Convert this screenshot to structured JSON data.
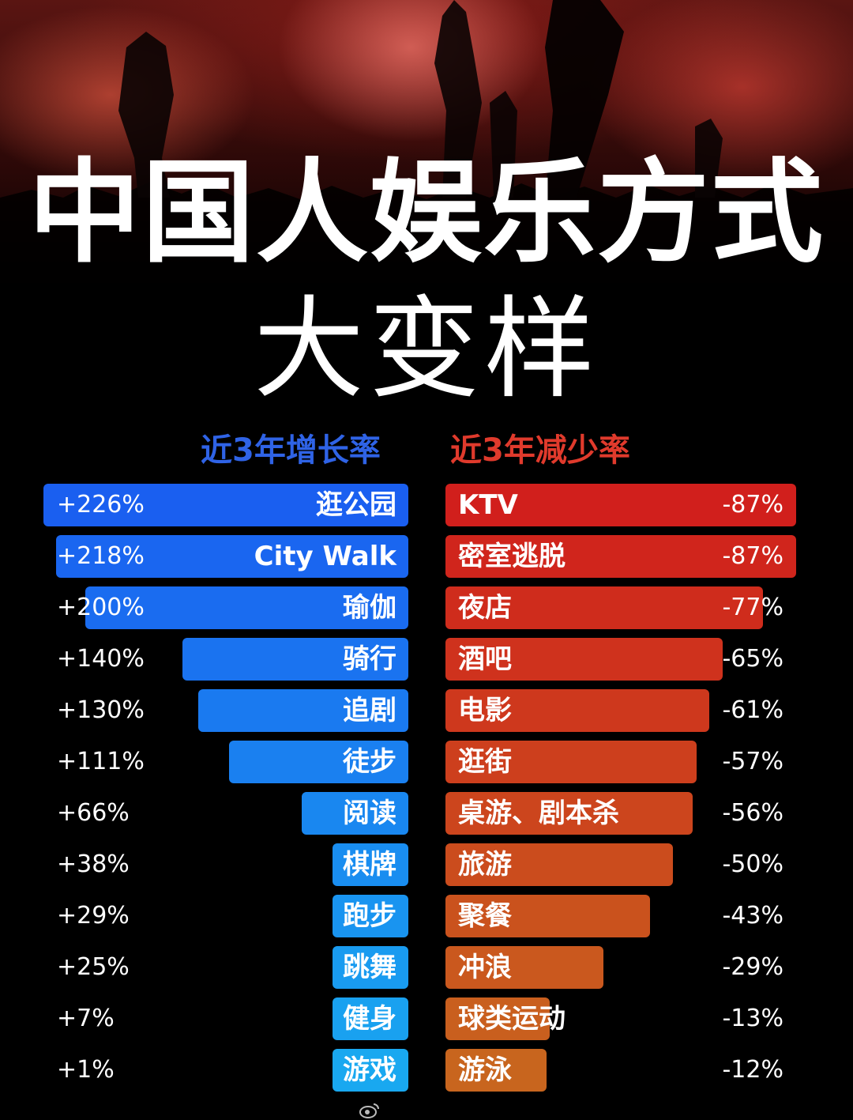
{
  "header": {
    "title_line1": "中国人娱乐方式",
    "title_line2": "大变样"
  },
  "chart_data": [
    {
      "type": "bar",
      "orientation": "horizontal",
      "title": "近3年增长率",
      "categories": [
        "逛公园",
        "City Walk",
        "瑜伽",
        "骑行",
        "追剧",
        "徒步",
        "阅读",
        "棋牌",
        "跑步",
        "跳舞",
        "健身",
        "游戏"
      ],
      "values": [
        226,
        218,
        200,
        140,
        130,
        111,
        66,
        38,
        29,
        25,
        7,
        1
      ],
      "value_labels": [
        "+226%",
        "+218%",
        "+200%",
        "+140%",
        "+130%",
        "+111%",
        "+66%",
        "+38%",
        "+29%",
        "+25%",
        "+7%",
        "+1%"
      ],
      "unit": "%",
      "xlim": [
        0,
        226
      ],
      "color": "#1a6ef3"
    },
    {
      "type": "bar",
      "orientation": "horizontal",
      "title": "近3年减少率",
      "categories": [
        "KTV",
        "密室逃脱",
        "夜店",
        "酒吧",
        "电影",
        "逛街",
        "桌游、剧本杀",
        "旅游",
        "聚餐",
        "冲浪",
        "球类运动",
        "游泳"
      ],
      "values": [
        -87,
        -87,
        -77,
        -65,
        -61,
        -57,
        -56,
        -50,
        -43,
        -29,
        -13,
        -12
      ],
      "value_labels": [
        "-87%",
        "-87%",
        "-77%",
        "-65%",
        "-61%",
        "-57%",
        "-56%",
        "-50%",
        "-43%",
        "-29%",
        "-13%",
        "-12%"
      ],
      "unit": "%",
      "xlim": [
        0,
        87
      ],
      "color": "#d0301e"
    }
  ],
  "colors": {
    "growth_header": "#2f63e6",
    "decline_header": "#e03a2c",
    "growth_start": "#1a5ff0",
    "growth_end": "#19a8f0",
    "decline_start": "#d11f1c",
    "decline_end": "#c8651e"
  }
}
